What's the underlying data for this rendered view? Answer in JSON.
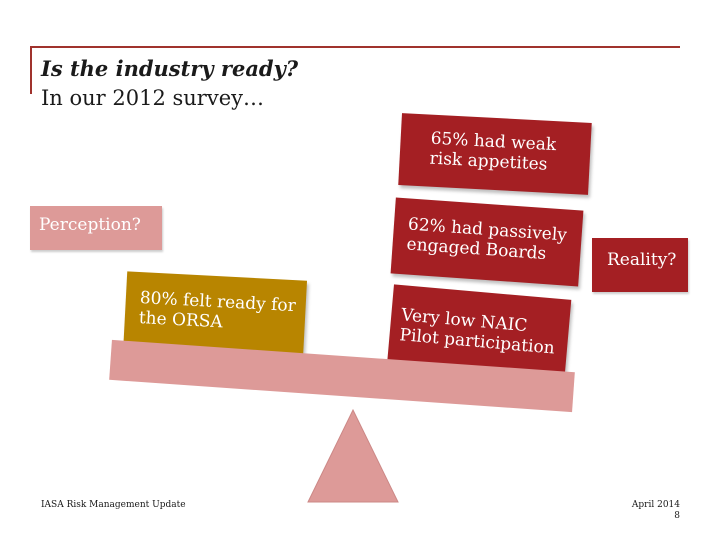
{
  "header": {
    "title": "Is the industry ready?",
    "subtitle": "In our 2012 survey…"
  },
  "labels": {
    "perception": "Perception?",
    "reality": "Reality?"
  },
  "findings": {
    "weak_risk": [
      "65% had weak",
      "risk appetites"
    ],
    "passive_boards": [
      "62% had passively",
      "engaged Boards"
    ],
    "naic_pilot": [
      "Very low NAIC",
      "Pilot participation"
    ],
    "orsa_ready": [
      "80% felt ready for",
      "the ORSA"
    ]
  },
  "footer": {
    "left": "IASA Risk Management Update",
    "date": "April 2014",
    "page": "8"
  },
  "colors": {
    "accent": "#a0322d",
    "dark_red": "#a41f23",
    "gold": "#b88500",
    "pink": "#dd9a98"
  }
}
